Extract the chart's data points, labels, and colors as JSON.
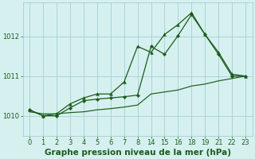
{
  "title": "Graphe pression niveau de la mer (hPa)",
  "background_color": "#d6f0f0",
  "grid_color": "#aad4d4",
  "line_color": "#1a5c1a",
  "ylim": [
    1009.5,
    1012.85
  ],
  "yticks": [
    1010,
    1011,
    1012
  ],
  "xtick_labels": [
    "0",
    "1",
    "2",
    "3",
    "4",
    "5",
    "6",
    "7",
    "8",
    "14",
    "15",
    "16",
    "18",
    "19",
    "21",
    "22",
    "23"
  ],
  "series1_y": [
    1010.15,
    1010.0,
    1010.05,
    1010.3,
    1010.45,
    1010.55,
    1010.55,
    1010.85,
    1011.75,
    1011.6,
    1012.05,
    1012.3,
    1012.6,
    1012.05,
    1011.6,
    1011.05,
    1011.0
  ],
  "series2_y": [
    1010.15,
    1010.0,
    1010.0,
    1010.2,
    1010.38,
    1010.42,
    1010.45,
    1010.48,
    1010.52,
    1011.75,
    1011.55,
    1012.02,
    1012.55,
    1012.05,
    1011.55,
    1011.0,
    1011.0
  ],
  "series3_y": [
    1010.1,
    1010.05,
    1010.05,
    1010.08,
    1010.1,
    1010.15,
    1010.18,
    1010.22,
    1010.27,
    1010.55,
    1010.6,
    1010.65,
    1010.75,
    1010.8,
    1010.88,
    1010.94,
    1011.0
  ],
  "title_fontsize": 7.5,
  "tick_fontsize": 6,
  "title_color": "#1a5c1a",
  "tick_color": "#1a5c1a"
}
